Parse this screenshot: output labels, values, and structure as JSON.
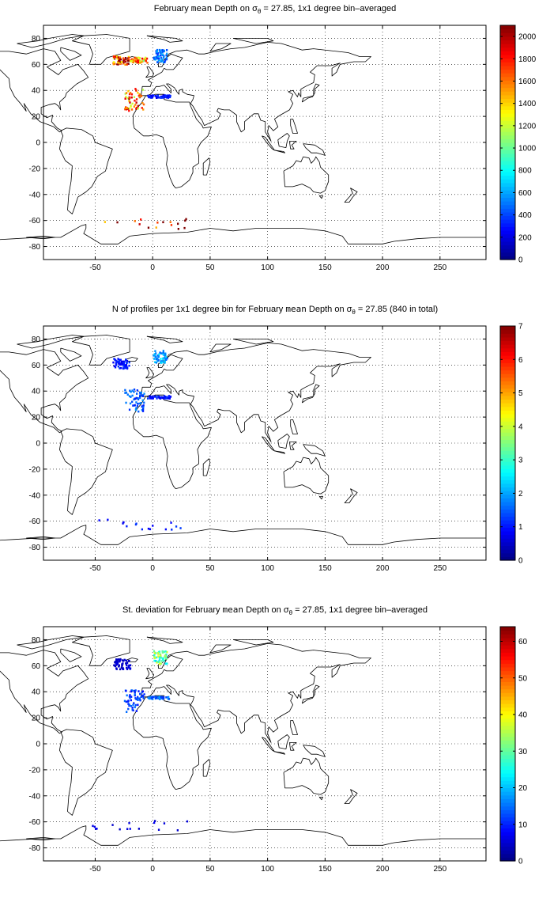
{
  "chart_data": [
    {
      "type": "heatmap",
      "title": "February mean Depth on σθ = 27.85, 1x1 degree bin–averaged",
      "title_parts": {
        "before": "February ",
        "mean": "mean",
        "mid": " Depth on ",
        "sigma": "σ",
        "sub": "θ",
        "after": " = 27.85, 1x1 degree bin–averaged"
      },
      "xlabel": "",
      "ylabel": "",
      "xlim": [
        -95,
        290
      ],
      "ylim": [
        -90,
        90
      ],
      "x_ticks": [
        -50,
        0,
        50,
        100,
        150,
        200,
        250
      ],
      "y_ticks": [
        -80,
        -60,
        -40,
        -20,
        0,
        20,
        40,
        60,
        80
      ],
      "grid": true,
      "colorbar": {
        "min": 0,
        "max": 2100,
        "ticks": [
          0,
          200,
          400,
          600,
          800,
          1000,
          1200,
          1400,
          1600,
          1800,
          2000
        ]
      },
      "clusters": [
        {
          "region": "North Atlantic subpolar",
          "lon": [
            -35,
            -20
          ],
          "lat": [
            60,
            67
          ],
          "value": 1800
        },
        {
          "region": "Iceland / Norwegian Sea",
          "lon": [
            -20,
            -5
          ],
          "lat": [
            62,
            66
          ],
          "value": 1450
        },
        {
          "region": "Norwegian Sea",
          "lon": [
            0,
            12
          ],
          "lat": [
            62,
            72
          ],
          "value": 500
        },
        {
          "region": "Iberian margin",
          "lon": [
            -25,
            -8
          ],
          "lat": [
            25,
            42
          ],
          "value": 1600
        },
        {
          "region": "Mediterranean",
          "lon": [
            -5,
            15
          ],
          "lat": [
            35,
            37
          ],
          "value": 300
        },
        {
          "region": "Southern Ocean",
          "lon": [
            -60,
            30
          ],
          "lat": [
            -66,
            -58
          ],
          "value": 1950
        }
      ]
    },
    {
      "type": "heatmap",
      "title": "N of profiles per 1x1 degree bin for February mean Depth on σθ = 27.85 (840 in total)",
      "title_parts": {
        "before": "N of profiles per 1x1 degree bin for February ",
        "mean": "mean",
        "mid": " Depth on ",
        "sigma": "σ",
        "sub": "θ",
        "after": " = 27.85 (840 in total)"
      },
      "xlabel": "",
      "ylabel": "",
      "xlim": [
        -95,
        290
      ],
      "ylim": [
        -90,
        90
      ],
      "x_ticks": [
        -50,
        0,
        50,
        100,
        150,
        200,
        250
      ],
      "y_ticks": [
        -80,
        -60,
        -40,
        -20,
        0,
        20,
        40,
        60,
        80
      ],
      "grid": true,
      "total_profiles": 840,
      "colorbar": {
        "min": 0,
        "max": 7,
        "ticks": [
          0,
          1,
          2,
          3,
          4,
          5,
          6,
          7
        ]
      },
      "clusters": [
        {
          "region": "North Atlantic subpolar",
          "lon": [
            -35,
            -20
          ],
          "lat": [
            58,
            66
          ],
          "value": 1
        },
        {
          "region": "Norwegian Sea",
          "lon": [
            0,
            12
          ],
          "lat": [
            62,
            72
          ],
          "value": 2
        },
        {
          "region": "Iberian margin",
          "lon": [
            -25,
            -8
          ],
          "lat": [
            25,
            42
          ],
          "value": 1.5
        },
        {
          "region": "Mediterranean",
          "lon": [
            -5,
            15
          ],
          "lat": [
            35,
            37
          ],
          "value": 1
        },
        {
          "region": "Southern Ocean",
          "lon": [
            -60,
            30
          ],
          "lat": [
            -66,
            -58
          ],
          "value": 1
        }
      ]
    },
    {
      "type": "heatmap",
      "title": "St. deviation for February mean Depth on σθ = 27.85, 1x1 degree bin–averaged",
      "title_parts": {
        "before": "St. deviation for February ",
        "mean": "mean",
        "mid": " Depth on ",
        "sigma": "σ",
        "sub": "θ",
        "after": " = 27.85, 1x1 degree bin–averaged"
      },
      "xlabel": "",
      "ylabel": "",
      "xlim": [
        -95,
        290
      ],
      "ylim": [
        -90,
        90
      ],
      "x_ticks": [
        -50,
        0,
        50,
        100,
        150,
        200,
        250
      ],
      "y_ticks": [
        -80,
        -60,
        -40,
        -20,
        0,
        20,
        40,
        60,
        80
      ],
      "grid": true,
      "colorbar": {
        "min": 0,
        "max": 64,
        "ticks": [
          0,
          10,
          20,
          30,
          40,
          50,
          60
        ]
      },
      "clusters": [
        {
          "region": "North Atlantic subpolar",
          "lon": [
            -35,
            -20
          ],
          "lat": [
            58,
            66
          ],
          "value": 5
        },
        {
          "region": "Norwegian Sea",
          "lon": [
            0,
            12
          ],
          "lat": [
            62,
            72
          ],
          "value": 30
        },
        {
          "region": "Iberian margin",
          "lon": [
            -25,
            -8
          ],
          "lat": [
            25,
            42
          ],
          "value": 12
        },
        {
          "region": "Mediterranean",
          "lon": [
            -5,
            15
          ],
          "lat": [
            35,
            37
          ],
          "value": 15
        },
        {
          "region": "Southern Ocean",
          "lon": [
            -60,
            30
          ],
          "lat": [
            -66,
            -58
          ],
          "value": 6
        }
      ]
    }
  ]
}
